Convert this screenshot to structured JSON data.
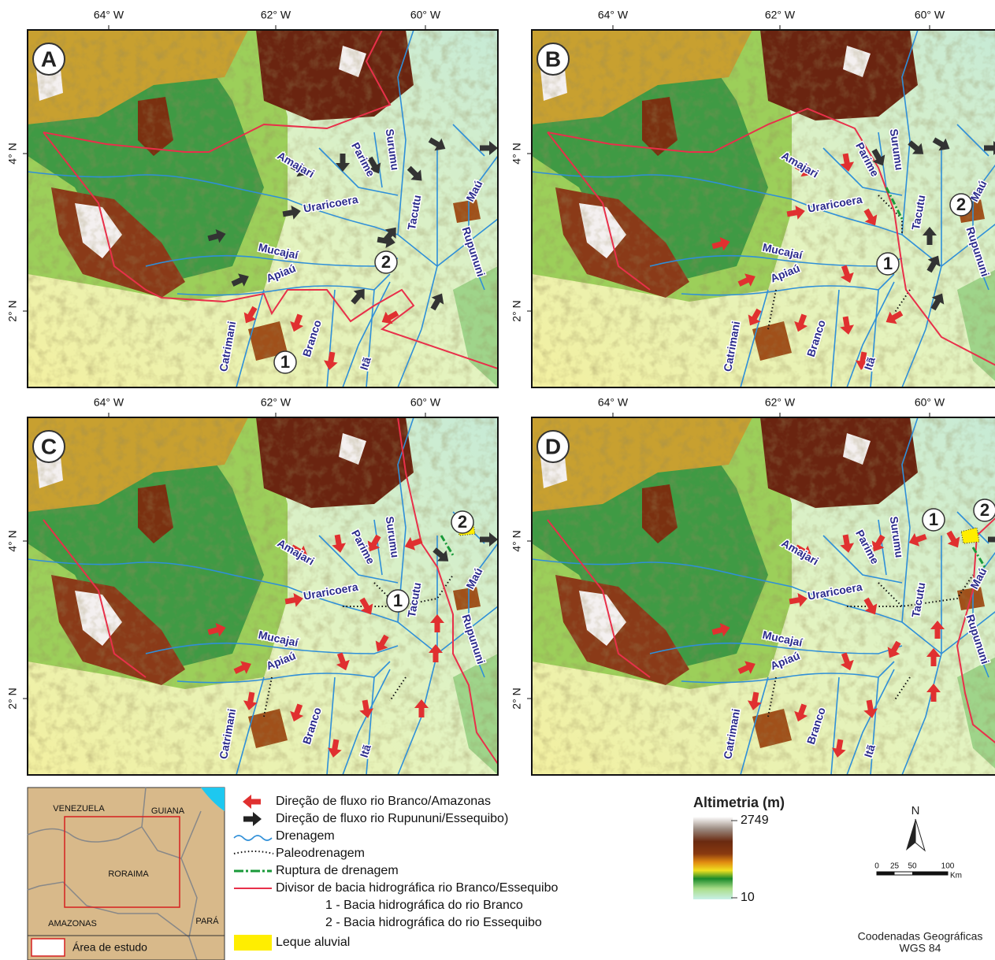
{
  "panels": [
    {
      "letter": "A",
      "x_labels": [
        "64° W",
        "62° W",
        "60° W"
      ],
      "y_labels": [
        "4° N",
        "2° N"
      ],
      "rivers": [
        "Amajari",
        "Parime",
        "Surumu",
        "Maú",
        "Uraricoera",
        "Mucajaí",
        "Apiaú",
        "Tacutu",
        "Rupununi",
        "Catrimani",
        "Branco",
        "Itã"
      ],
      "basins": [
        "1",
        "2"
      ]
    },
    {
      "letter": "B",
      "x_labels": [
        "64° W",
        "62° W",
        "60° W"
      ],
      "y_labels": [
        "4° N",
        "2° N"
      ],
      "rivers": [
        "Amajari",
        "Parime",
        "Surumu",
        "Maú",
        "Uraricoera",
        "Mucajaí",
        "Apiaú",
        "Tacutu",
        "Rupununi",
        "Catrimani",
        "Branco",
        "Itã"
      ],
      "basins": [
        "1",
        "2"
      ]
    },
    {
      "letter": "C",
      "x_labels": [
        "64° W",
        "62° W",
        "60° W"
      ],
      "y_labels": [
        "4° N",
        "2° N"
      ],
      "rivers": [
        "Amajari",
        "Parime",
        "Surumu",
        "Maú",
        "Uraricoera",
        "Mucajaí",
        "Apiaú",
        "Tacutu",
        "Rupununi",
        "Catrimani",
        "Branco",
        "Itã"
      ],
      "basins": [
        "1",
        "2"
      ]
    },
    {
      "letter": "D",
      "x_labels": [
        "64° W",
        "62° W",
        "60° W"
      ],
      "y_labels": [
        "4° N",
        "2° N"
      ],
      "rivers": [
        "Amajari",
        "Parime",
        "Surumu",
        "Maú",
        "Uraricoera",
        "Mucajaí",
        "Apiaú",
        "Tacutu",
        "Rupununi",
        "Catrimani",
        "Branco",
        "Itã"
      ],
      "basins": [
        "1",
        "2"
      ]
    }
  ],
  "legend": {
    "items": [
      "Direção de fluxo rio Branco/Amazonas",
      "Direção de fluxo rio Rupununi/Essequibo)",
      "Drenagem",
      "Paleodrenagem",
      "Ruptura de drenagem",
      "Divisor de bacia hidrográfica rio Branco/Essequibo",
      "1 - Bacia hidrográfica do rio Branco",
      "2 - Bacia hidrográfica do rio Essequibo",
      "Leque aluvial"
    ]
  },
  "inset": {
    "labels": [
      "VENEZUELA",
      "GUIANA",
      "RORAIMA",
      "AMAZONAS",
      "PARÁ"
    ],
    "legend": "Área de estudo"
  },
  "elevation": {
    "title": "Altimetria (m)",
    "max": 2749,
    "min": 10
  },
  "north": "N",
  "scale": {
    "ticks": [
      0,
      25,
      50,
      100
    ],
    "unit": "Km"
  },
  "coordinates": [
    "Coodenadas Geográficas",
    "WGS 84"
  ]
}
